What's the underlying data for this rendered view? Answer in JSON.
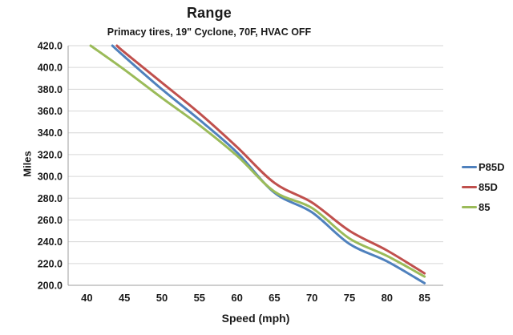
{
  "chart_data": {
    "type": "line",
    "title": "Range",
    "subtitle": "Primacy tires, 19\" Cyclone, 70F, HVAC OFF",
    "xlabel": "Speed (mph)",
    "ylabel": "Miles",
    "xlim": [
      37.5,
      87.5
    ],
    "ylim": [
      200,
      420
    ],
    "x_ticks": [
      "40",
      "45",
      "50",
      "55",
      "60",
      "65",
      "70",
      "75",
      "80",
      "85"
    ],
    "y_ticks": [
      "420.0",
      "400.0",
      "380.0",
      "360.0",
      "340.0",
      "320.0",
      "300.0",
      "280.0",
      "260.0",
      "240.0",
      "220.0",
      "200.0"
    ],
    "grid": "horizontal-only",
    "legend_position": "right-center",
    "series": [
      {
        "name": "P85D",
        "color": "#4F81BD",
        "points": [
          [
            43.4,
            420
          ],
          [
            45,
            410
          ],
          [
            50,
            380
          ],
          [
            55,
            352
          ],
          [
            60,
            322
          ],
          [
            65,
            285
          ],
          [
            70,
            267
          ],
          [
            75,
            238
          ],
          [
            80,
            222
          ],
          [
            85,
            202
          ]
        ]
      },
      {
        "name": "85D",
        "color": "#C0504D",
        "points": [
          [
            44.0,
            420
          ],
          [
            45,
            414
          ],
          [
            50,
            386
          ],
          [
            55,
            358
          ],
          [
            60,
            327
          ],
          [
            65,
            294
          ],
          [
            70,
            276
          ],
          [
            75,
            250
          ],
          [
            80,
            232
          ],
          [
            85,
            211
          ]
        ]
      },
      {
        "name": "85",
        "color": "#9BBB59",
        "points": [
          [
            40.5,
            420
          ],
          [
            45,
            398
          ],
          [
            50,
            372
          ],
          [
            55,
            347
          ],
          [
            60,
            319
          ],
          [
            65,
            286
          ],
          [
            70,
            271
          ],
          [
            75,
            243
          ],
          [
            80,
            227
          ],
          [
            85,
            208
          ]
        ]
      }
    ],
    "styles": {
      "grid_color": "#D6D6D6",
      "axis_color": "#9E9E9E",
      "text_color": "#1a1a1a",
      "line_width": 3
    }
  }
}
